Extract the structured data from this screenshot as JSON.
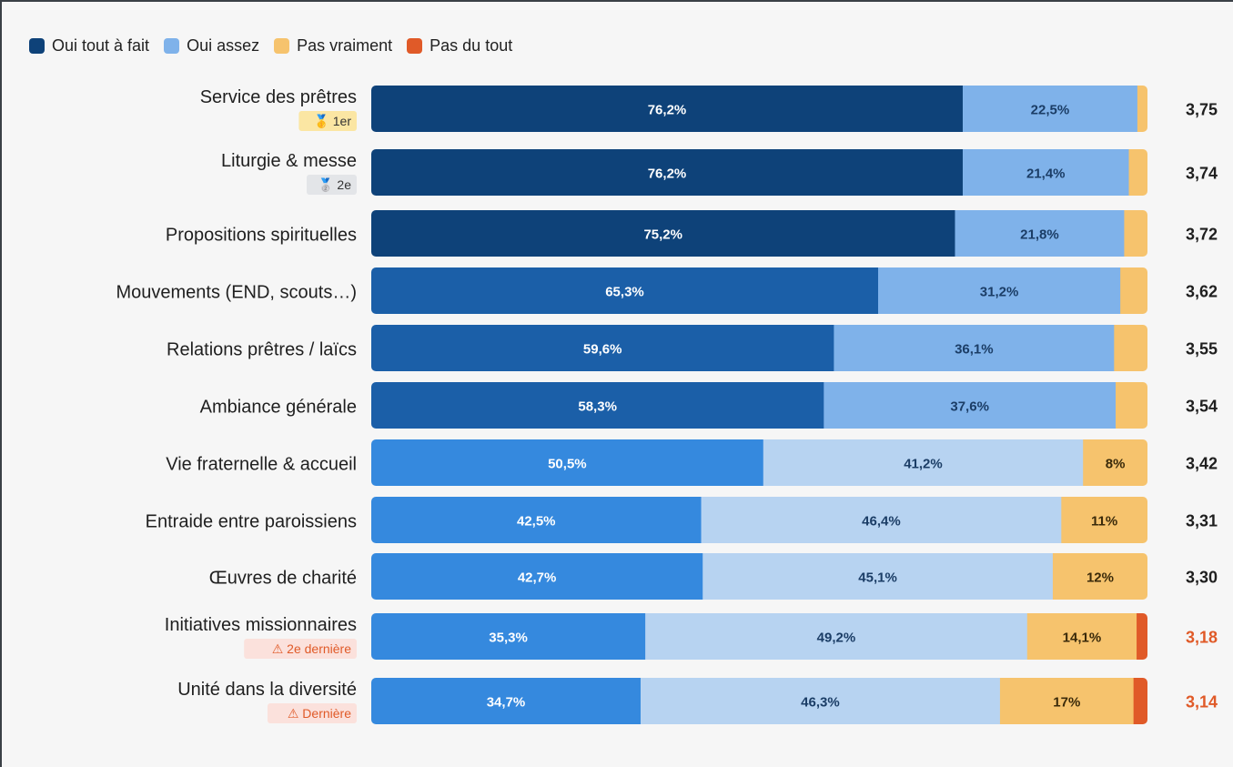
{
  "colors": {
    "oui_tout_a_fait_dark": "#0e4279",
    "oui_tout_a_fait_mid": "#1b5fa8",
    "oui_tout_a_fait_light": "#3589de",
    "oui_assez_strong": "#7fb2ea",
    "oui_assez_pale": "#b7d3f1",
    "pas_vraiment": "#f6c36d",
    "pas_du_tout": "#e05a28",
    "warning_text": "#e05a28",
    "gold_badge_bg": "#fbe6a3",
    "silver_badge_bg": "#e3e5e8",
    "warning_badge_bg": "#fbe1dc"
  },
  "chart_data": {
    "type": "bar",
    "orientation": "horizontal",
    "stacked": true,
    "legend_position": "top-left",
    "xlim": [
      0,
      100
    ],
    "grid": false,
    "legend": [
      {
        "name": "Oui tout à fait",
        "color": "#0e4279"
      },
      {
        "name": "Oui assez",
        "color": "#7fb2ea"
      },
      {
        "name": "Pas vraiment",
        "color": "#f6c36d"
      },
      {
        "name": "Pas du tout",
        "color": "#e05a28"
      }
    ],
    "categories": [
      "Service des prêtres",
      "Liturgie & messe",
      "Propositions spirituelles",
      "Mouvements (END, scouts…)",
      "Relations prêtres / laïcs",
      "Ambiance générale",
      "Vie fraternelle & accueil",
      "Entraide entre paroissiens",
      "Œuvres de charité",
      "Initiatives missionnaires",
      "Unité dans la diversité"
    ],
    "badges": [
      "🥇 1er",
      "🥈 2e",
      "",
      "",
      "",
      "",
      "",
      "",
      "",
      "⚠ 2e dernière",
      "⚠ Dernière"
    ],
    "series": [
      {
        "name": "Oui tout à fait",
        "values": [
          76.2,
          76.2,
          75.2,
          65.3,
          59.6,
          58.3,
          50.5,
          42.5,
          42.7,
          35.3,
          34.7
        ],
        "labels": [
          "76,2%",
          "76,2%",
          "75,2%",
          "65,3%",
          "59,6%",
          "58,3%",
          "50,5%",
          "42,5%",
          "42,7%",
          "35,3%",
          "34,7%"
        ]
      },
      {
        "name": "Oui assez",
        "values": [
          22.5,
          21.4,
          21.8,
          31.2,
          36.1,
          37.6,
          41.2,
          46.4,
          45.1,
          49.2,
          46.3
        ],
        "labels": [
          "22,5%",
          "21,4%",
          "21,8%",
          "31,2%",
          "36,1%",
          "37,6%",
          "41,2%",
          "46,4%",
          "45,1%",
          "49,2%",
          "46,3%"
        ]
      },
      {
        "name": "Pas vraiment",
        "values": [
          1.3,
          2.4,
          3.0,
          3.5,
          4.3,
          4.1,
          8.3,
          11.1,
          12.2,
          14.1,
          17.2
        ],
        "labels": [
          "",
          "",
          "",
          "",
          "",
          "",
          "8%",
          "11%",
          "12%",
          "14,1%",
          "17%"
        ]
      },
      {
        "name": "Pas du tout",
        "values": [
          0,
          0,
          0,
          0,
          0,
          0,
          0,
          0,
          0,
          1.4,
          1.8
        ],
        "labels": [
          "",
          "",
          "",
          "",
          "",
          "",
          "",
          "",
          "",
          "",
          ""
        ]
      }
    ],
    "scores": [
      "3,75",
      "3,74",
      "3,72",
      "3,62",
      "3,55",
      "3,54",
      "3,42",
      "3,31",
      "3,30",
      "3,18",
      "3,14"
    ],
    "score_warning": [
      false,
      false,
      false,
      false,
      false,
      false,
      false,
      false,
      false,
      true,
      true
    ]
  }
}
